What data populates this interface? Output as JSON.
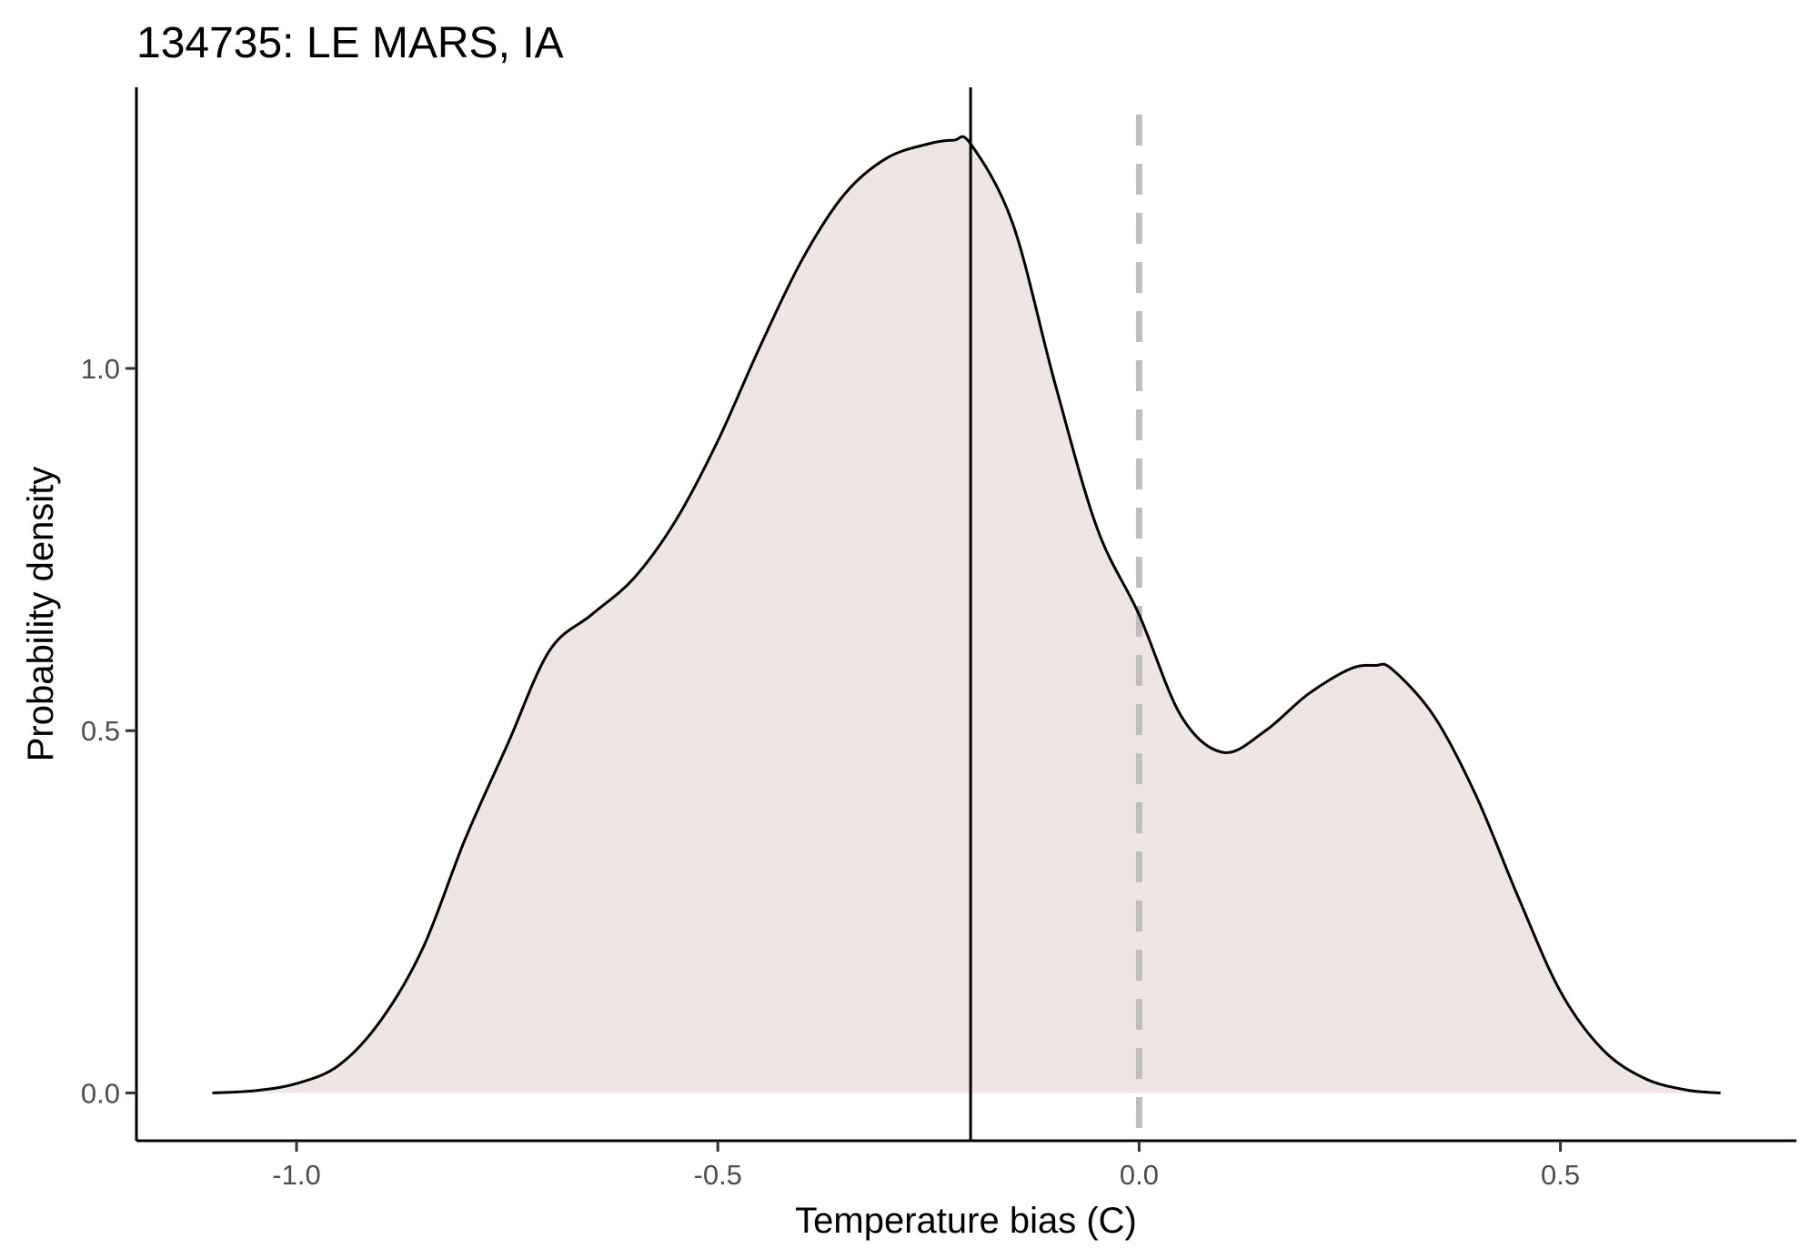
{
  "chart_data": {
    "type": "area",
    "title": "134735: LE MARS, IA",
    "xlabel": "Temperature bias (C)",
    "ylabel": "Probability density",
    "xlim": [
      -1.19,
      0.78
    ],
    "ylim": [
      -0.066,
      1.388
    ],
    "x_ticks": [
      -1.0,
      -0.5,
      0.0,
      0.5
    ],
    "x_tick_labels": [
      "-1.0",
      "-0.5",
      "0.0",
      "0.5"
    ],
    "y_ticks": [
      0.0,
      0.5,
      1.0
    ],
    "y_tick_labels": [
      "0.0",
      "0.5",
      "1.0"
    ],
    "grid": false,
    "legend": "none",
    "fill_color": "#efe6e3",
    "line_color": "#000000",
    "reference_lines": [
      {
        "x": -0.2,
        "style": "solid",
        "color": "#000000"
      },
      {
        "x": 0.0,
        "style": "dashed",
        "color": "#bfbfbf"
      }
    ],
    "series": [
      {
        "x": [
          -1.1,
          -1.05,
          -1.0,
          -0.95,
          -0.9,
          -0.85,
          -0.8,
          -0.75,
          -0.7,
          -0.65,
          -0.6,
          -0.55,
          -0.5,
          -0.45,
          -0.4,
          -0.35,
          -0.3,
          -0.25,
          -0.22,
          -0.2,
          -0.15,
          -0.1,
          -0.05,
          0.0,
          0.05,
          0.1,
          0.15,
          0.2,
          0.25,
          0.28,
          0.3,
          0.35,
          0.4,
          0.45,
          0.5,
          0.55,
          0.6,
          0.65,
          0.69
        ],
        "y": [
          0.0,
          0.003,
          0.013,
          0.038,
          0.1,
          0.2,
          0.35,
          0.48,
          0.61,
          0.66,
          0.71,
          0.79,
          0.9,
          1.03,
          1.15,
          1.24,
          1.29,
          1.31,
          1.315,
          1.31,
          1.2,
          0.98,
          0.78,
          0.66,
          0.52,
          0.47,
          0.5,
          0.55,
          0.585,
          0.59,
          0.585,
          0.52,
          0.41,
          0.27,
          0.14,
          0.06,
          0.02,
          0.004,
          0.0
        ]
      }
    ]
  }
}
